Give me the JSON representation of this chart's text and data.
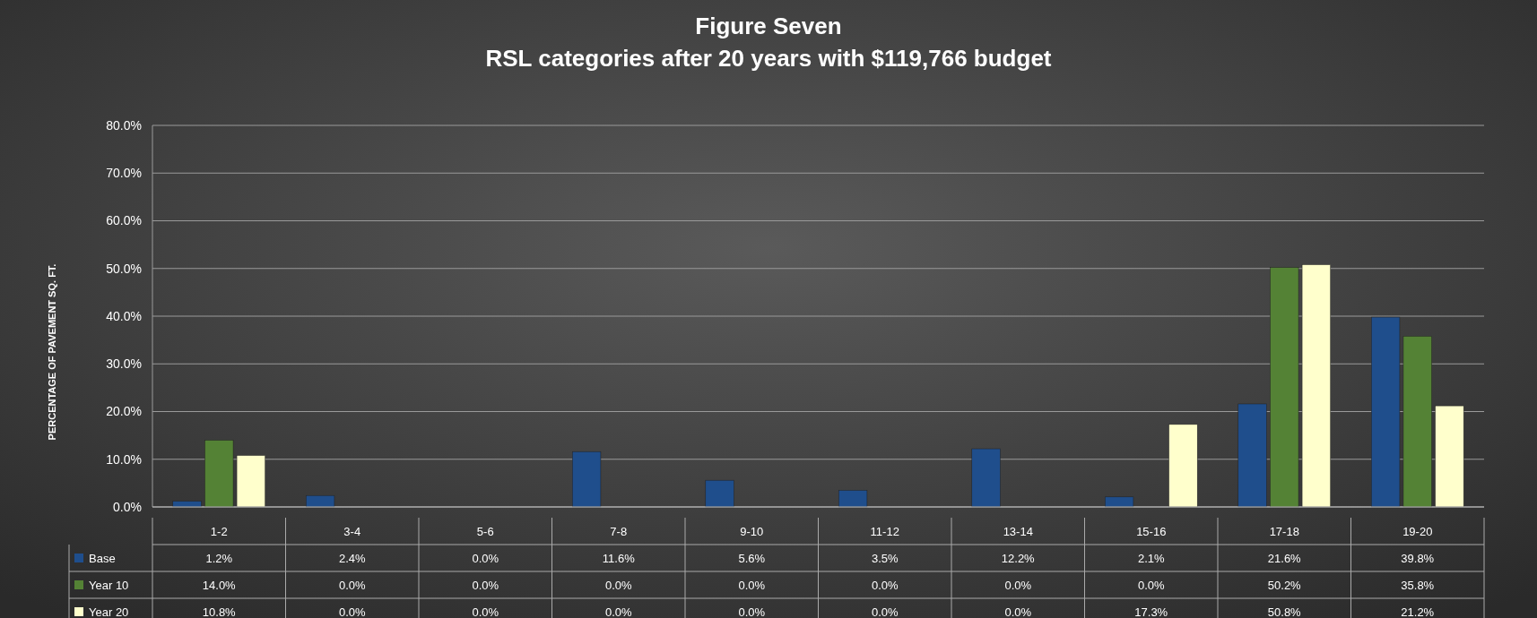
{
  "chart_data": {
    "type": "bar",
    "title": "Figure Seven",
    "subtitle": "RSL categories after 20 years with $119,766 budget",
    "ylabel": "PERCENTAGE OF PAVEMENT SQ. FT.",
    "categories": [
      "1-2",
      "3-4",
      "5-6",
      "7-8",
      "9-10",
      "11-12",
      "13-14",
      "15-16",
      "17-18",
      "19-20"
    ],
    "series": [
      {
        "name": "Base",
        "color": "#1f4e8c",
        "values": [
          1.2,
          2.4,
          0.0,
          11.6,
          5.6,
          3.5,
          12.2,
          2.1,
          21.6,
          39.8
        ],
        "value_labels": [
          "1.2%",
          "2.4%",
          "0.0%",
          "11.6%",
          "5.6%",
          "3.5%",
          "12.2%",
          "2.1%",
          "21.6%",
          "39.8%"
        ]
      },
      {
        "name": "Year 10",
        "color": "#548235",
        "values": [
          14.0,
          0.0,
          0.0,
          0.0,
          0.0,
          0.0,
          0.0,
          0.0,
          50.2,
          35.8
        ],
        "value_labels": [
          "14.0%",
          "0.0%",
          "0.0%",
          "0.0%",
          "0.0%",
          "0.0%",
          "0.0%",
          "0.0%",
          "50.2%",
          "35.8%"
        ]
      },
      {
        "name": "Year 20",
        "color": "#ffffcc",
        "values": [
          10.8,
          0.0,
          0.0,
          0.0,
          0.0,
          0.0,
          0.0,
          17.3,
          50.8,
          21.2
        ],
        "value_labels": [
          "10.8%",
          "0.0%",
          "0.0%",
          "0.0%",
          "0.0%",
          "0.0%",
          "0.0%",
          "17.3%",
          "50.8%",
          "21.2%"
        ]
      }
    ],
    "ylim": [
      0,
      80
    ],
    "yticks": [
      {
        "value": 0,
        "label": "0.0%"
      },
      {
        "value": 10,
        "label": "10.0%"
      },
      {
        "value": 20,
        "label": "20.0%"
      },
      {
        "value": 30,
        "label": "30.0%"
      },
      {
        "value": 40,
        "label": "40.0%"
      },
      {
        "value": 50,
        "label": "50.0%"
      },
      {
        "value": 60,
        "label": "60.0%"
      },
      {
        "value": 70,
        "label": "70.0%"
      },
      {
        "value": 80,
        "label": "80.0%"
      }
    ],
    "grid": "y",
    "legend": "bottom"
  }
}
